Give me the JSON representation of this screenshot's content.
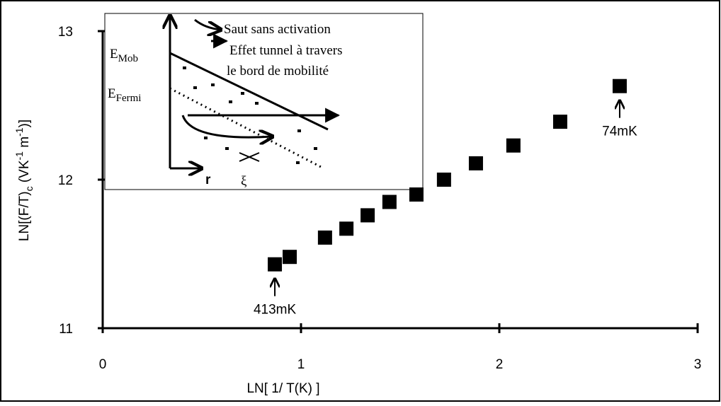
{
  "chart_data": {
    "type": "scatter",
    "xlabel": "LN[ 1/ T(K) ]",
    "ylabel_parts": [
      "LN[(F/T)",
      "c",
      " (VK",
      "-1",
      " m",
      "-1",
      ")]"
    ],
    "x": [
      0.868,
      0.943,
      1.121,
      1.229,
      1.336,
      1.446,
      1.582,
      1.721,
      1.882,
      2.071,
      2.307,
      2.607
    ],
    "values": [
      11.43,
      11.48,
      11.61,
      11.67,
      11.76,
      11.85,
      11.9,
      12.0,
      12.11,
      12.23,
      12.39,
      12.63
    ],
    "color": "#000000",
    "xlim": [
      0,
      3
    ],
    "xticks": [
      0,
      1,
      2,
      3
    ],
    "ylim": [
      11,
      13
    ],
    "yticks": [
      11,
      12,
      13
    ],
    "grid": false,
    "annotations": [
      "413mK",
      "74mK"
    ],
    "inset": {
      "legend": [
        "Saut sans activation",
        "Effet tunnel à travers",
        "le bord de mobilité"
      ],
      "mobility_edge": {
        "symbol": "E",
        "subscript": "Mob"
      },
      "fermi_level": {
        "symbol": "E",
        "subscript": "Fermi"
      },
      "axis_label": "r",
      "length_label": "ξ"
    }
  }
}
